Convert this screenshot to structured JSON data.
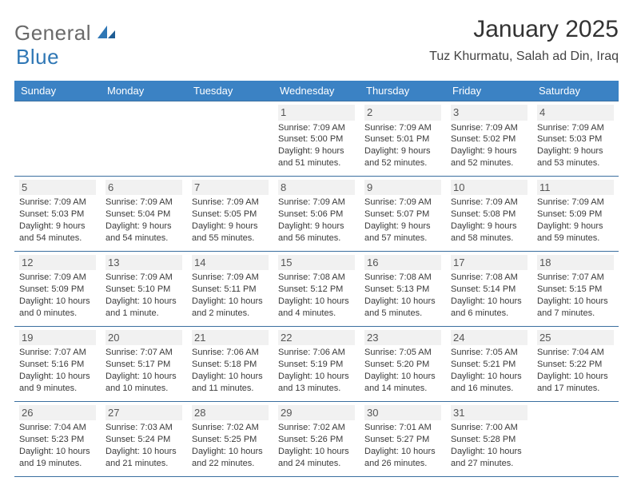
{
  "brand": {
    "word1": "General",
    "word2": "Blue",
    "logo_color": "#2f77b5",
    "general_color": "#6a6a6a"
  },
  "title": "January 2025",
  "location": "Tuz Khurmatu, Salah ad Din, Iraq",
  "colors": {
    "header_bg": "#3b82c4",
    "header_text": "#ffffff",
    "rule": "#3b6fa0",
    "daynum_bg": "#f1f1f1",
    "text": "#333333"
  },
  "weekdays": [
    "Sunday",
    "Monday",
    "Tuesday",
    "Wednesday",
    "Thursday",
    "Friday",
    "Saturday"
  ],
  "leading_blanks": 3,
  "days": [
    {
      "n": "1",
      "sunrise": "Sunrise: 7:09 AM",
      "sunset": "Sunset: 5:00 PM",
      "daylight1": "Daylight: 9 hours",
      "daylight2": "and 51 minutes."
    },
    {
      "n": "2",
      "sunrise": "Sunrise: 7:09 AM",
      "sunset": "Sunset: 5:01 PM",
      "daylight1": "Daylight: 9 hours",
      "daylight2": "and 52 minutes."
    },
    {
      "n": "3",
      "sunrise": "Sunrise: 7:09 AM",
      "sunset": "Sunset: 5:02 PM",
      "daylight1": "Daylight: 9 hours",
      "daylight2": "and 52 minutes."
    },
    {
      "n": "4",
      "sunrise": "Sunrise: 7:09 AM",
      "sunset": "Sunset: 5:03 PM",
      "daylight1": "Daylight: 9 hours",
      "daylight2": "and 53 minutes."
    },
    {
      "n": "5",
      "sunrise": "Sunrise: 7:09 AM",
      "sunset": "Sunset: 5:03 PM",
      "daylight1": "Daylight: 9 hours",
      "daylight2": "and 54 minutes."
    },
    {
      "n": "6",
      "sunrise": "Sunrise: 7:09 AM",
      "sunset": "Sunset: 5:04 PM",
      "daylight1": "Daylight: 9 hours",
      "daylight2": "and 54 minutes."
    },
    {
      "n": "7",
      "sunrise": "Sunrise: 7:09 AM",
      "sunset": "Sunset: 5:05 PM",
      "daylight1": "Daylight: 9 hours",
      "daylight2": "and 55 minutes."
    },
    {
      "n": "8",
      "sunrise": "Sunrise: 7:09 AM",
      "sunset": "Sunset: 5:06 PM",
      "daylight1": "Daylight: 9 hours",
      "daylight2": "and 56 minutes."
    },
    {
      "n": "9",
      "sunrise": "Sunrise: 7:09 AM",
      "sunset": "Sunset: 5:07 PM",
      "daylight1": "Daylight: 9 hours",
      "daylight2": "and 57 minutes."
    },
    {
      "n": "10",
      "sunrise": "Sunrise: 7:09 AM",
      "sunset": "Sunset: 5:08 PM",
      "daylight1": "Daylight: 9 hours",
      "daylight2": "and 58 minutes."
    },
    {
      "n": "11",
      "sunrise": "Sunrise: 7:09 AM",
      "sunset": "Sunset: 5:09 PM",
      "daylight1": "Daylight: 9 hours",
      "daylight2": "and 59 minutes."
    },
    {
      "n": "12",
      "sunrise": "Sunrise: 7:09 AM",
      "sunset": "Sunset: 5:09 PM",
      "daylight1": "Daylight: 10 hours",
      "daylight2": "and 0 minutes."
    },
    {
      "n": "13",
      "sunrise": "Sunrise: 7:09 AM",
      "sunset": "Sunset: 5:10 PM",
      "daylight1": "Daylight: 10 hours",
      "daylight2": "and 1 minute."
    },
    {
      "n": "14",
      "sunrise": "Sunrise: 7:09 AM",
      "sunset": "Sunset: 5:11 PM",
      "daylight1": "Daylight: 10 hours",
      "daylight2": "and 2 minutes."
    },
    {
      "n": "15",
      "sunrise": "Sunrise: 7:08 AM",
      "sunset": "Sunset: 5:12 PM",
      "daylight1": "Daylight: 10 hours",
      "daylight2": "and 4 minutes."
    },
    {
      "n": "16",
      "sunrise": "Sunrise: 7:08 AM",
      "sunset": "Sunset: 5:13 PM",
      "daylight1": "Daylight: 10 hours",
      "daylight2": "and 5 minutes."
    },
    {
      "n": "17",
      "sunrise": "Sunrise: 7:08 AM",
      "sunset": "Sunset: 5:14 PM",
      "daylight1": "Daylight: 10 hours",
      "daylight2": "and 6 minutes."
    },
    {
      "n": "18",
      "sunrise": "Sunrise: 7:07 AM",
      "sunset": "Sunset: 5:15 PM",
      "daylight1": "Daylight: 10 hours",
      "daylight2": "and 7 minutes."
    },
    {
      "n": "19",
      "sunrise": "Sunrise: 7:07 AM",
      "sunset": "Sunset: 5:16 PM",
      "daylight1": "Daylight: 10 hours",
      "daylight2": "and 9 minutes."
    },
    {
      "n": "20",
      "sunrise": "Sunrise: 7:07 AM",
      "sunset": "Sunset: 5:17 PM",
      "daylight1": "Daylight: 10 hours",
      "daylight2": "and 10 minutes."
    },
    {
      "n": "21",
      "sunrise": "Sunrise: 7:06 AM",
      "sunset": "Sunset: 5:18 PM",
      "daylight1": "Daylight: 10 hours",
      "daylight2": "and 11 minutes."
    },
    {
      "n": "22",
      "sunrise": "Sunrise: 7:06 AM",
      "sunset": "Sunset: 5:19 PM",
      "daylight1": "Daylight: 10 hours",
      "daylight2": "and 13 minutes."
    },
    {
      "n": "23",
      "sunrise": "Sunrise: 7:05 AM",
      "sunset": "Sunset: 5:20 PM",
      "daylight1": "Daylight: 10 hours",
      "daylight2": "and 14 minutes."
    },
    {
      "n": "24",
      "sunrise": "Sunrise: 7:05 AM",
      "sunset": "Sunset: 5:21 PM",
      "daylight1": "Daylight: 10 hours",
      "daylight2": "and 16 minutes."
    },
    {
      "n": "25",
      "sunrise": "Sunrise: 7:04 AM",
      "sunset": "Sunset: 5:22 PM",
      "daylight1": "Daylight: 10 hours",
      "daylight2": "and 17 minutes."
    },
    {
      "n": "26",
      "sunrise": "Sunrise: 7:04 AM",
      "sunset": "Sunset: 5:23 PM",
      "daylight1": "Daylight: 10 hours",
      "daylight2": "and 19 minutes."
    },
    {
      "n": "27",
      "sunrise": "Sunrise: 7:03 AM",
      "sunset": "Sunset: 5:24 PM",
      "daylight1": "Daylight: 10 hours",
      "daylight2": "and 21 minutes."
    },
    {
      "n": "28",
      "sunrise": "Sunrise: 7:02 AM",
      "sunset": "Sunset: 5:25 PM",
      "daylight1": "Daylight: 10 hours",
      "daylight2": "and 22 minutes."
    },
    {
      "n": "29",
      "sunrise": "Sunrise: 7:02 AM",
      "sunset": "Sunset: 5:26 PM",
      "daylight1": "Daylight: 10 hours",
      "daylight2": "and 24 minutes."
    },
    {
      "n": "30",
      "sunrise": "Sunrise: 7:01 AM",
      "sunset": "Sunset: 5:27 PM",
      "daylight1": "Daylight: 10 hours",
      "daylight2": "and 26 minutes."
    },
    {
      "n": "31",
      "sunrise": "Sunrise: 7:00 AM",
      "sunset": "Sunset: 5:28 PM",
      "daylight1": "Daylight: 10 hours",
      "daylight2": "and 27 minutes."
    }
  ]
}
